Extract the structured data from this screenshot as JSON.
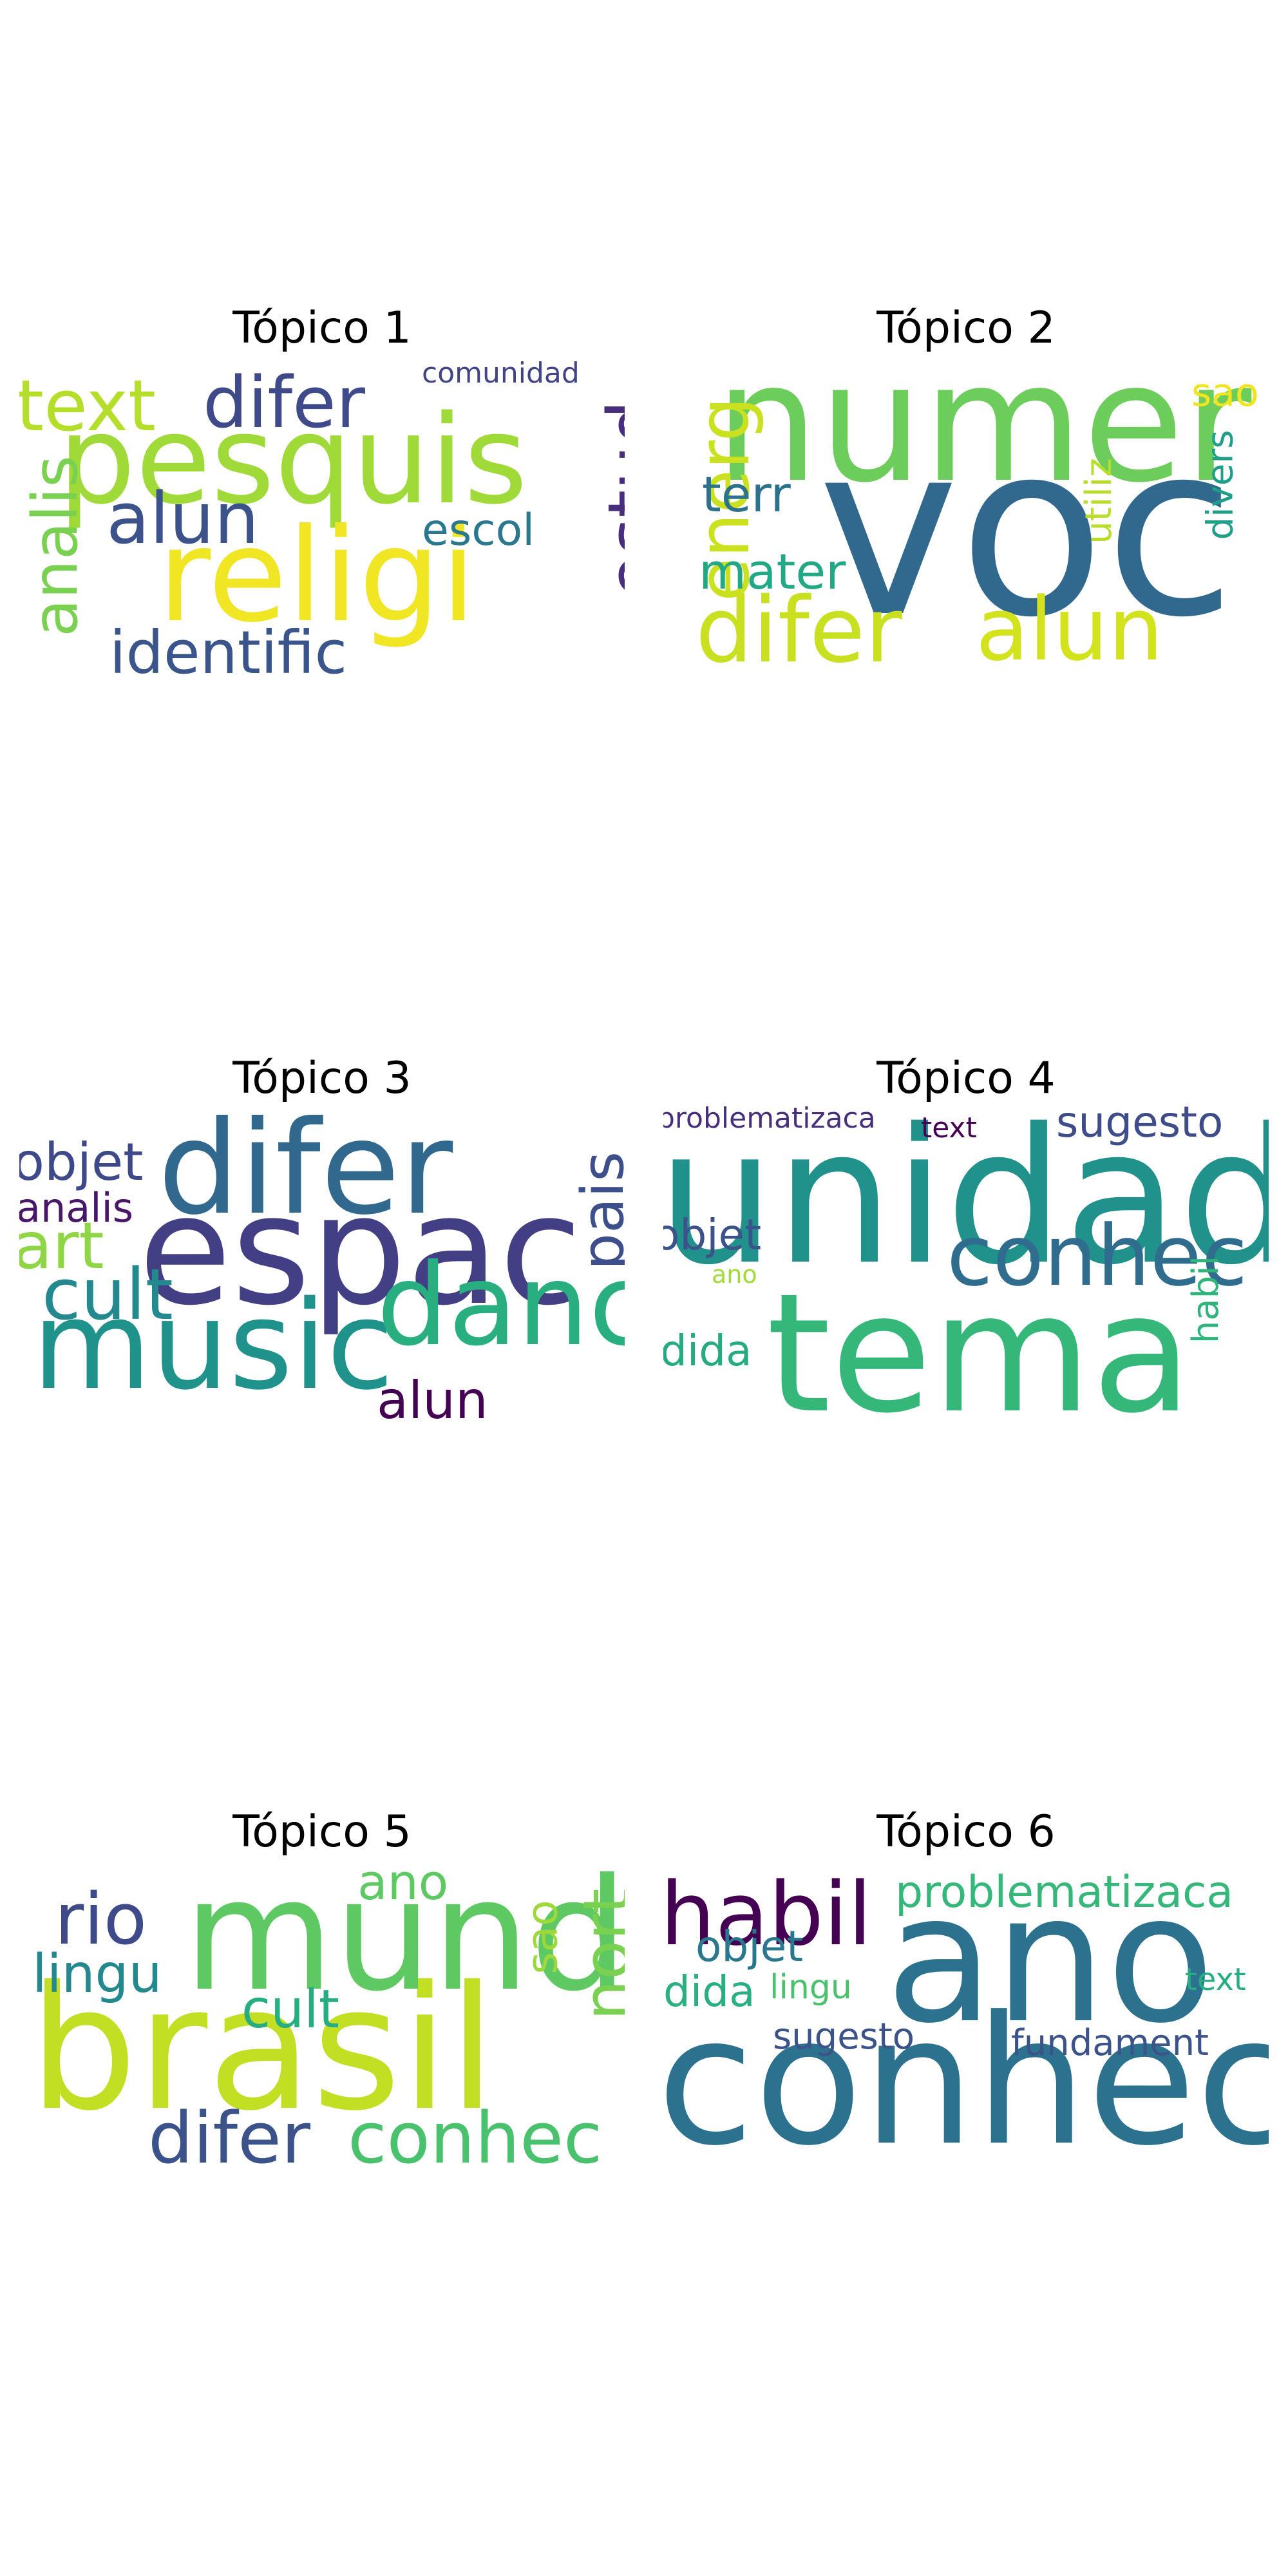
{
  "panels": [
    {
      "title": "Tópico 1",
      "words": [
        {
          "text": "pesquis",
          "color": "#a0da39"
        },
        {
          "text": "religi",
          "color": "#f0e624"
        },
        {
          "text": "difer",
          "color": "#3e4a89"
        },
        {
          "text": "text",
          "color": "#b5de2b"
        },
        {
          "text": "alun",
          "color": "#3b528b"
        },
        {
          "text": "identific",
          "color": "#3a548c"
        },
        {
          "text": "analis",
          "color": "#7ad151"
        },
        {
          "text": "estud",
          "color": "#472d7b"
        },
        {
          "text": "escol",
          "color": "#2a788e"
        },
        {
          "text": "comunidad",
          "color": "#414487"
        }
      ]
    },
    {
      "title": "Tópico 2",
      "words": [
        {
          "text": "voc",
          "color": "#31688e"
        },
        {
          "text": "numer",
          "color": "#6ccd5a"
        },
        {
          "text": "difer",
          "color": "#c8e020"
        },
        {
          "text": "alun",
          "color": "#d2e21b"
        },
        {
          "text": "energ",
          "color": "#cae11f"
        },
        {
          "text": "terr",
          "color": "#2c728e"
        },
        {
          "text": "mater",
          "color": "#22a884"
        },
        {
          "text": "sao",
          "color": "#f1e51d"
        },
        {
          "text": "divers",
          "color": "#1f9e89"
        },
        {
          "text": "utiliz",
          "color": "#b8de29"
        }
      ]
    },
    {
      "title": "Tópico 3",
      "words": [
        {
          "text": "espac",
          "color": "#423f85"
        },
        {
          "text": "difer",
          "color": "#31688e"
        },
        {
          "text": "music",
          "color": "#20928c"
        },
        {
          "text": "danc",
          "color": "#29af7f"
        },
        {
          "text": "cult",
          "color": "#23898e"
        },
        {
          "text": "pais",
          "color": "#3c4f8a"
        },
        {
          "text": "objet",
          "color": "#3e4989"
        },
        {
          "text": "art",
          "color": "#8ed645"
        },
        {
          "text": "analis",
          "color": "#481769"
        },
        {
          "text": "alun",
          "color": "#440154"
        }
      ]
    },
    {
      "title": "Tópico 4",
      "words": [
        {
          "text": "unidad",
          "color": "#21918c"
        },
        {
          "text": "tema",
          "color": "#35b779"
        },
        {
          "text": "conhec",
          "color": "#2f6c8e"
        },
        {
          "text": "sugesto",
          "color": "#3e4c8a"
        },
        {
          "text": "objet",
          "color": "#3b528b"
        },
        {
          "text": "habil",
          "color": "#2fb47c"
        },
        {
          "text": "dida",
          "color": "#25ab82"
        },
        {
          "text": "problematizaca",
          "color": "#472f7d"
        },
        {
          "text": "text",
          "color": "#440154"
        },
        {
          "text": "ano",
          "color": "#a2da37"
        }
      ]
    },
    {
      "title": "Tópico 5",
      "words": [
        {
          "text": "brasil",
          "color": "#c2df23"
        },
        {
          "text": "mund",
          "color": "#5ec962"
        },
        {
          "text": "conhec",
          "color": "#4ac16d"
        },
        {
          "text": "difer",
          "color": "#3b528b"
        },
        {
          "text": "rio",
          "color": "#3e4a89"
        },
        {
          "text": "nort",
          "color": "#7ad151"
        },
        {
          "text": "lingu",
          "color": "#23898e"
        },
        {
          "text": "cult",
          "color": "#26ad81"
        },
        {
          "text": "ano",
          "color": "#5ec962"
        },
        {
          "text": "sao",
          "color": "#9dd93b"
        }
      ]
    },
    {
      "title": "Tópico 6",
      "words": [
        {
          "text": "conhec",
          "color": "#2c728e"
        },
        {
          "text": "ano",
          "color": "#2c728e"
        },
        {
          "text": "habil",
          "color": "#440154"
        },
        {
          "text": "problematizaca",
          "color": "#35b779"
        },
        {
          "text": "objet",
          "color": "#2a788e"
        },
        {
          "text": "dida",
          "color": "#2ab07f"
        },
        {
          "text": "lingu",
          "color": "#4ac16d"
        },
        {
          "text": "sugesto",
          "color": "#3b528b"
        },
        {
          "text": "fundament",
          "color": "#3b528b"
        },
        {
          "text": "text",
          "color": "#26ad81"
        }
      ]
    }
  ]
}
